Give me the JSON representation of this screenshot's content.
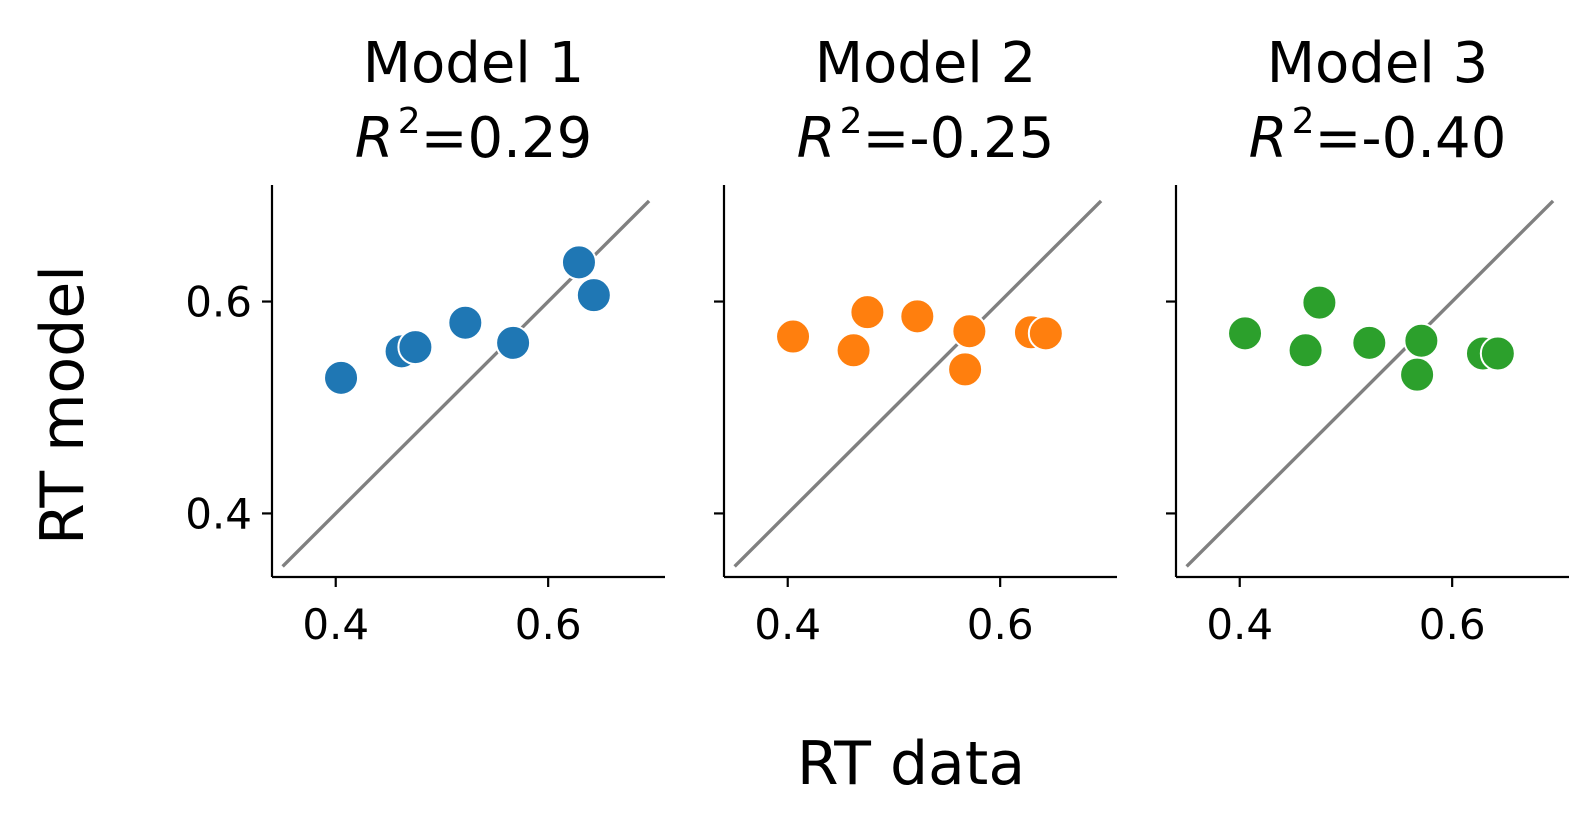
{
  "chart_data": {
    "type": "scatter",
    "xlabel": "RT data",
    "ylabel": "RT model",
    "xlim": [
      0.34,
      0.71
    ],
    "ylim": [
      0.34,
      0.71
    ],
    "xticks": [
      "0.4",
      "0.6"
    ],
    "yticks": [
      "0.4",
      "0.6"
    ],
    "identity_line": [
      [
        0.35,
        0.35
      ],
      [
        0.695,
        0.695
      ]
    ],
    "identity_line_color": "#808080",
    "panels": [
      {
        "name": "Model 1",
        "r2_label": "R",
        "r2_exponent": "2",
        "r2_value": "=0.29",
        "color": "#1f77b4",
        "x": [
          0.405,
          0.462,
          0.475,
          0.522,
          0.567,
          0.629,
          0.643
        ],
        "y": [
          0.528,
          0.553,
          0.557,
          0.58,
          0.561,
          0.637,
          0.606
        ]
      },
      {
        "name": "Model 2",
        "r2_label": "R",
        "r2_exponent": "2",
        "r2_value": "=-0.25",
        "color": "#ff7f0e",
        "x": [
          0.405,
          0.462,
          0.475,
          0.522,
          0.567,
          0.571,
          0.629,
          0.643
        ],
        "y": [
          0.567,
          0.554,
          0.59,
          0.586,
          0.536,
          0.572,
          0.571,
          0.57
        ]
      },
      {
        "name": "Model 3",
        "r2_label": "R",
        "r2_exponent": "2",
        "r2_value": "=-0.40",
        "color": "#2ca02c",
        "x": [
          0.405,
          0.462,
          0.475,
          0.522,
          0.567,
          0.571,
          0.629,
          0.643
        ],
        "y": [
          0.57,
          0.554,
          0.599,
          0.561,
          0.531,
          0.563,
          0.551,
          0.551
        ]
      }
    ]
  }
}
